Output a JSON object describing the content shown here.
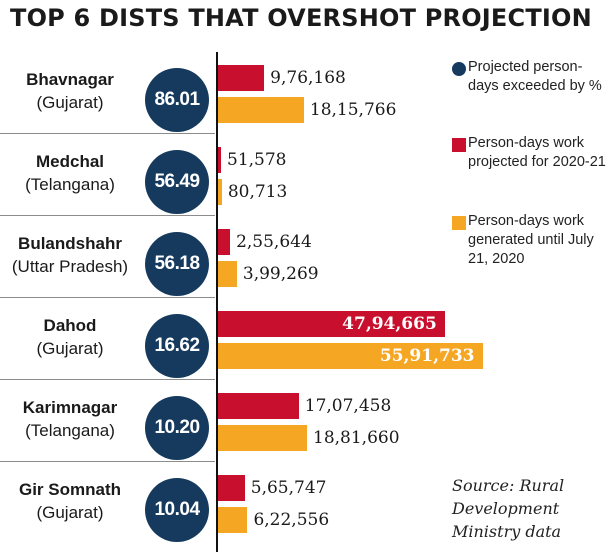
{
  "title": "TOP 6 DISTS THAT OVERSHOT PROJECTION",
  "legend": [
    {
      "label": "Projected person-days exceeded by %",
      "color": "#163a5e",
      "shape": "circle"
    },
    {
      "label": "Person-days work projected for 2020-21",
      "color": "#c8102e",
      "shape": "square"
    },
    {
      "label": "Person-days work generated until July 21, 2020",
      "color": "#f5a623",
      "shape": "square"
    }
  ],
  "source": "Source: Rural Development Ministry data",
  "chart_data": {
    "type": "bar",
    "orientation": "horizontal",
    "title": "TOP 6 DISTS THAT OVERSHOT PROJECTION",
    "categories": [
      "Bhavnagar",
      "Medchal",
      "Bulandshahr",
      "Dahod",
      "Karimnagar",
      "Gir Somnath"
    ],
    "states": [
      "(Gujarat)",
      "(Telangana)",
      "(Uttar Pradesh)",
      "(Gujarat)",
      "(Telangana)",
      "(Gujarat)"
    ],
    "exceeded_pct": [
      "86.01",
      "56.49",
      "56.18",
      "16.62",
      "10.20",
      "10.04"
    ],
    "series": [
      {
        "name": "Person-days work projected for 2020-21",
        "color": "#c8102e",
        "values": [
          976168,
          51578,
          255644,
          4794665,
          1707458,
          565747
        ],
        "labels": [
          "9,76,168",
          "51,578",
          "2,55,644",
          "47,94,665",
          "17,07,458",
          "5,65,747"
        ]
      },
      {
        "name": "Person-days work generated until July 21, 2020",
        "color": "#f5a623",
        "values": [
          1815766,
          80713,
          399269,
          5591733,
          1881660,
          622556
        ],
        "labels": [
          "18,15,766",
          "80,713",
          "3,99,269",
          "55,91,733",
          "18,81,660",
          "6,22,556"
        ]
      }
    ],
    "xlim": [
      0,
      5750000
    ]
  }
}
